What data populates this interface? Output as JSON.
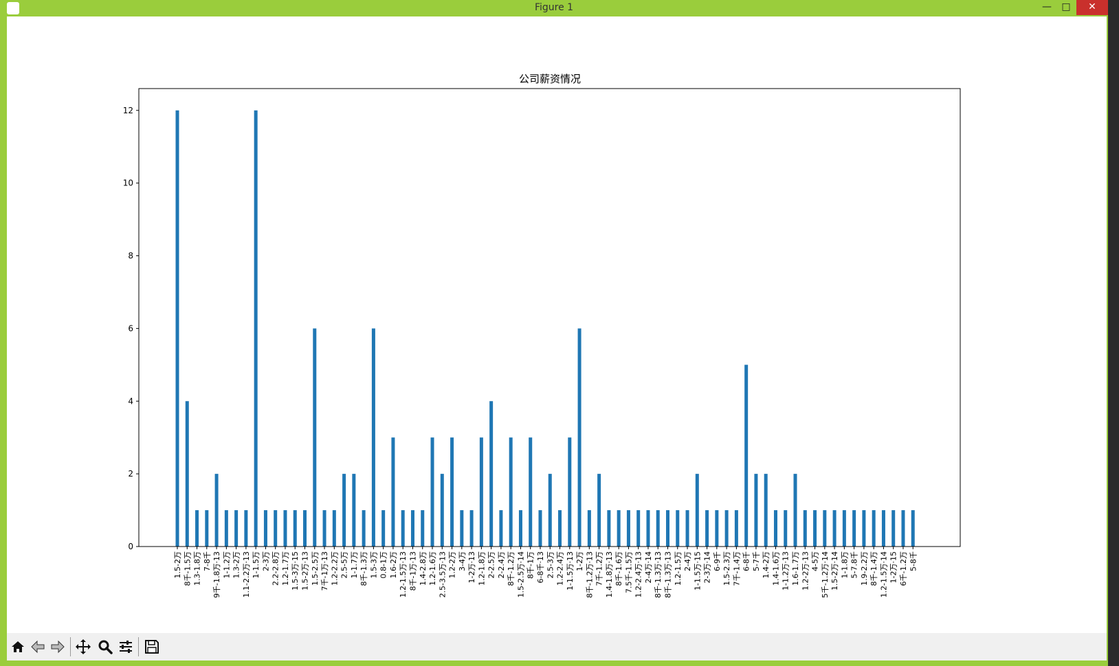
{
  "window": {
    "title": "Figure 1"
  },
  "toolbar": {
    "buttons": [
      {
        "name": "home-button",
        "icon": "home-icon"
      },
      {
        "name": "back-button",
        "icon": "arrow-left-icon"
      },
      {
        "name": "forward-button",
        "icon": "arrow-right-icon"
      },
      {
        "name": "pan-button",
        "icon": "move-icon"
      },
      {
        "name": "zoom-button",
        "icon": "magnifier-icon"
      },
      {
        "name": "subplots-button",
        "icon": "sliders-icon"
      },
      {
        "name": "save-button",
        "icon": "floppy-disk-icon"
      }
    ]
  },
  "colors": {
    "bar": "#1f77b4",
    "window_frame": "#9acd3c"
  },
  "chart_data": {
    "type": "bar",
    "title": "公司薪资情况",
    "xlabel": "",
    "ylabel": "",
    "ylim": [
      0,
      12.6
    ],
    "yticks": [
      0,
      2,
      4,
      6,
      8,
      10,
      12
    ],
    "categories": [
      "1.5-2万",
      "8千-1.5万",
      "1.3-1.8万",
      "7-8千",
      "9千-1.8万·13",
      "1-1.2万",
      "1.3-2万",
      "1.1-2.2万·13",
      "1-1.5万",
      "2-3万",
      "2.2-2.8万",
      "1.2-1.7万",
      "1.5-3万·15",
      "1.5-2万·13",
      "1.5-2.5万",
      "7千-1万·13",
      "1.2-2.2万",
      "2.5-5万",
      "1-1.7万",
      "8千-1.3万",
      "1.5-3万",
      "0.8-1万",
      "1.6-2万",
      "1.2-1.5万·13",
      "8千-1万·13",
      "1.4-2.8万",
      "1.2-1.6万",
      "2.5-3.5万·13",
      "1.2-2万",
      "3-4万",
      "1-2万·13",
      "1.2-1.8万",
      "2-2.5万",
      "2-2.4万",
      "8千-1.2万",
      "1.5-2.5万·14",
      "8千-1万",
      "6-8千·13",
      "2.5-3万",
      "1.2-2.4万",
      "1-1.5万·13",
      "1-2万",
      "8千-1.2万·13",
      "7千-1.2万",
      "1.4-1.8万·13",
      "8千-1.6万",
      "7.5千-1.5万",
      "1.2-2.4万·13",
      "2-4万·14",
      "8千-1.3万·13",
      "8千-1.3万·13",
      "1.2-1.5万",
      "2-4万",
      "1-1.5万·15",
      "2-3万·14",
      "6-9千",
      "1.5-2.3万",
      "7千-1.4万",
      "6-8千",
      "5-7千",
      "1.4-2万",
      "1.4-1.6万",
      "1-1.2万·13",
      "1.6-1.7万",
      "1.2-2万·13",
      "4-5万",
      "5千-1.2万·14",
      "1.5-2万·14",
      "1-1.8万",
      "5-7.8千",
      "1.9-2.2万",
      "8千-1.4万",
      "1.2-1.5万·14",
      "1-2万·15",
      "6千-1.2万",
      "5-8千"
    ],
    "values": [
      12,
      4,
      1,
      1,
      2,
      1,
      1,
      1,
      12,
      1,
      1,
      1,
      1,
      1,
      6,
      1,
      1,
      2,
      2,
      1,
      6,
      1,
      3,
      1,
      1,
      1,
      3,
      2,
      3,
      1,
      1,
      3,
      4,
      1,
      3,
      1,
      3,
      1,
      2,
      1,
      3,
      6,
      1,
      2,
      1,
      1,
      1,
      1,
      1,
      1,
      1,
      1,
      1,
      2,
      1,
      1,
      1,
      1,
      5,
      2,
      2,
      1,
      1,
      2,
      1,
      1,
      1,
      1,
      1,
      1,
      1,
      1,
      1,
      1,
      1,
      1
    ]
  }
}
